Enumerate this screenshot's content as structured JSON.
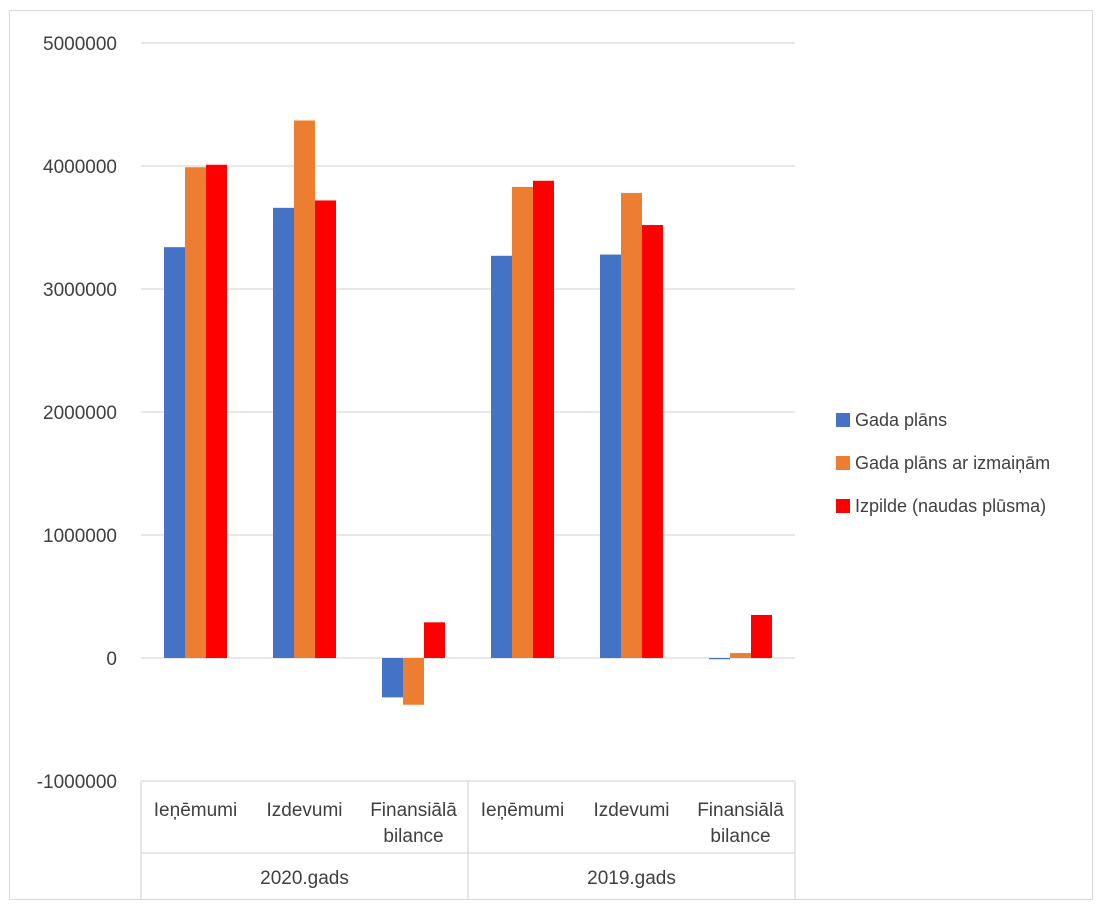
{
  "chart_data": {
    "type": "bar",
    "categories": [
      {
        "group": "2020.gads",
        "label_lines": [
          "Ieņēmumi"
        ]
      },
      {
        "group": "2020.gads",
        "label_lines": [
          "Izdevumi"
        ]
      },
      {
        "group": "2020.gads",
        "label_lines": [
          "Finansiālā",
          "bilance"
        ]
      },
      {
        "group": "2019.gads",
        "label_lines": [
          "Ieņēmumi"
        ]
      },
      {
        "group": "2019.gads",
        "label_lines": [
          "Izdevumi"
        ]
      },
      {
        "group": "2019.gads",
        "label_lines": [
          "Finansiālā",
          "bilance"
        ]
      }
    ],
    "groups": [
      "2020.gads",
      "2019.gads"
    ],
    "series": [
      {
        "name": "Gada plāns",
        "color": "#4472c4",
        "values": [
          3340000,
          3660000,
          -320000,
          3270000,
          3280000,
          -10000
        ]
      },
      {
        "name": "Gada plāns ar izmaiņām",
        "color": "#ed7d31",
        "values": [
          3990000,
          4370000,
          -380000,
          3830000,
          3780000,
          40000
        ]
      },
      {
        "name": "Izpilde (naudas plūsma)",
        "color": "#ff0000",
        "values": [
          4010000,
          3720000,
          290000,
          3880000,
          3520000,
          350000
        ]
      }
    ],
    "yticks": [
      "5000000",
      "4000000",
      "3000000",
      "2000000",
      "1000000",
      "0",
      "-1000000"
    ],
    "ylim": [
      -1000000,
      5000000
    ],
    "grid": true,
    "legend_position": "right"
  }
}
